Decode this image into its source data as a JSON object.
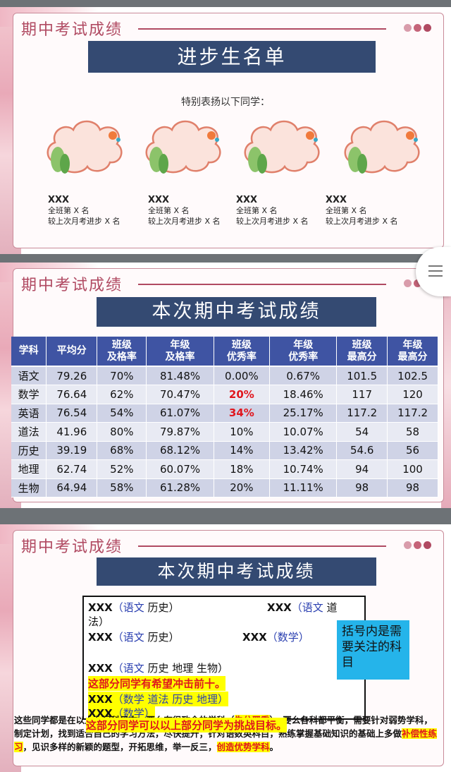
{
  "slide1": {
    "header": "期中考试成绩",
    "banner": "进步生名单",
    "subtitle": "特别表扬以下同学：",
    "students": [
      {
        "name": "XXX",
        "rank": "全班第 X 名",
        "progress": "较上次月考进步 X 名"
      },
      {
        "name": "XXX",
        "rank": "全班第 X 名",
        "progress": "较上次月考进步 X 名"
      },
      {
        "name": "XXX",
        "rank": "全班第 X 名",
        "progress": "较上次月考进步 X 名"
      },
      {
        "name": "XXX",
        "rank": "全班第 X 名",
        "progress": "较上次月考进步 X 名"
      }
    ]
  },
  "slide2": {
    "header": "期中考试成绩",
    "banner": "本次期中考试成绩",
    "columns": [
      [
        "学科"
      ],
      [
        "平均分"
      ],
      [
        "班级",
        "及格率"
      ],
      [
        "年级",
        "及格率"
      ],
      [
        "班级",
        "优秀率"
      ],
      [
        "年级",
        "优秀率"
      ],
      [
        "班级",
        "最高分"
      ],
      [
        "年级",
        "最高分"
      ]
    ],
    "rows": [
      [
        "语文",
        "79.26",
        "70%",
        "81.48%",
        "0.00%",
        "0.67%",
        "101.5",
        "102.5"
      ],
      [
        "数学",
        "76.64",
        "62%",
        "70.47%",
        "20%",
        "18.46%",
        "117",
        "120"
      ],
      [
        "英语",
        "76.54",
        "54%",
        "61.07%",
        "34%",
        "25.17%",
        "117.2",
        "117.2"
      ],
      [
        "道法",
        "41.96",
        "80%",
        "79.87%",
        "10%",
        "10.07%",
        "54",
        "58"
      ],
      [
        "历史",
        "39.19",
        "68%",
        "68.12%",
        "14%",
        "13.42%",
        "54.6",
        "56"
      ],
      [
        "地理",
        "62.74",
        "52%",
        "60.07%",
        "18%",
        "10.74%",
        "94",
        "100"
      ],
      [
        "生物",
        "64.94",
        "58%",
        "61.28%",
        "20%",
        "11.11%",
        "98",
        "98"
      ]
    ],
    "highlight_color": "#e0161d"
  },
  "slide3": {
    "header": "期中考试成绩",
    "banner": "本次期中考试成绩",
    "line1a_name": "XXX",
    "line1a_open": "（",
    "line1a_subj1": "语文",
    "line1a_subj2": " 历史）",
    "line1b_name": "XXX",
    "line1b_open": "（",
    "line1b_subj1": "语文",
    "line1b_subj2": " 道",
    "line1c": "法）",
    "line2a_name": "XXX",
    "line2a_open": "（",
    "line2a_subj1": "语文",
    "line2a_subj2": " 历史）",
    "line2b_name": "XXX",
    "line2b_subj": "（数学）",
    "line3_name": "XXX",
    "line3_open": "（",
    "line3_subj1": "语文",
    "line3_subj2": " 历史 地理 生物）",
    "line4": "这部分同学有希望冲击前十。",
    "line5_name": "XXX",
    "line5_subj": "（数学 道法 历史 地理）",
    "line6_name": "XXX",
    "line6_subj": "（数学）",
    "line7": "这部分同学可以以上部分同学为挑战目标。",
    "note": "括号内是需要关注的科目",
    "para_1": "这些同学都是",
    "para_2": "在以上七门科目中，要么有很致命的学科（",
    "para_3": "失分严重",
    "para_4": "），要么各科都平衡，",
    "para_5": "需要针对弱势学科，制定计划，找到适合自己的学习方法，尽快提升；针对语数英科目，熟练掌握基础知识的基础上多做",
    "para_6": "补偿性练习",
    "para_7": "，见识多样的新颖的题型，开拓思维，举一反三，",
    "para_8": "创造优势学科",
    "para_9": "。"
  }
}
